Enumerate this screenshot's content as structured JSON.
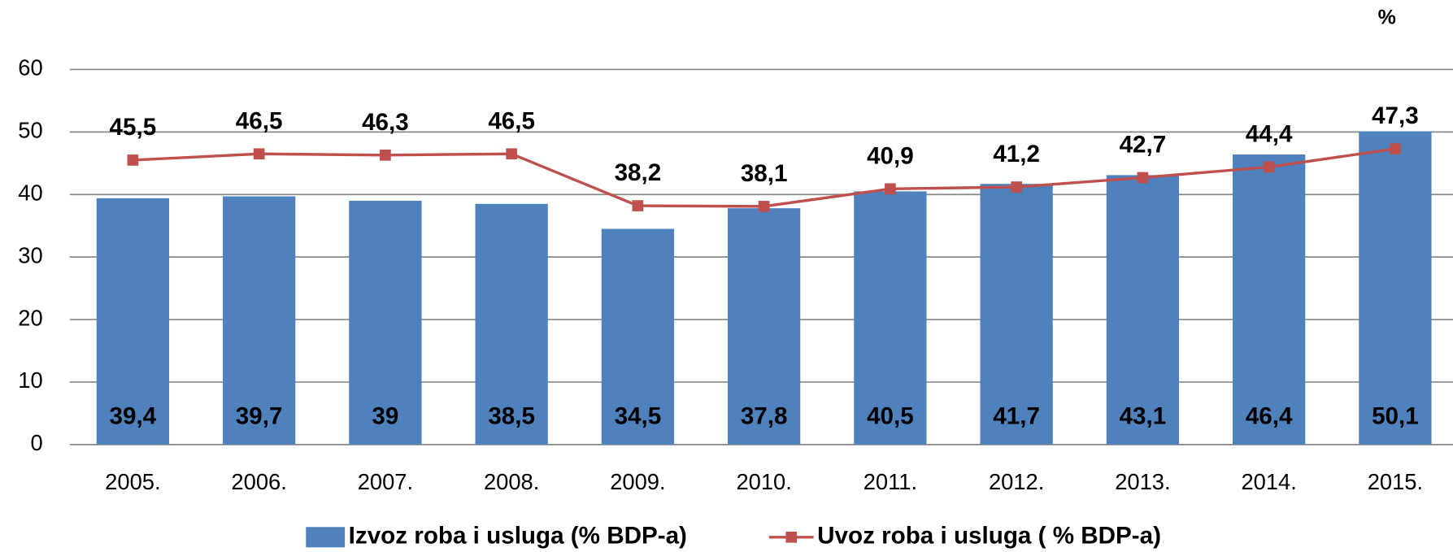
{
  "chart_data": {
    "type": "combo",
    "unit": "%",
    "categories": [
      "2005.",
      "2006.",
      "2007.",
      "2008.",
      "2009.",
      "2010.",
      "2011.",
      "2012.",
      "2013.",
      "2014.",
      "2015."
    ],
    "series": [
      {
        "name": "Izvoz roba i usluga (% BDP-a)",
        "type": "bar",
        "color": "#4f81bd",
        "values": [
          39.4,
          39.7,
          39,
          38.5,
          34.5,
          37.8,
          40.5,
          41.7,
          43.1,
          46.4,
          50.1
        ],
        "value_labels": [
          "39,4",
          "39,7",
          "39",
          "38,5",
          "34,5",
          "37,8",
          "40,5",
          "41,7",
          "43,1",
          "46,4",
          "50,1"
        ]
      },
      {
        "name": "Uvoz roba i usluga ( % BDP-a)",
        "type": "line",
        "color": "#c0504d",
        "values": [
          45.5,
          46.5,
          46.3,
          46.5,
          38.2,
          38.1,
          40.9,
          41.2,
          42.7,
          44.4,
          47.3
        ],
        "value_labels": [
          "45,5",
          "46,5",
          "46,3",
          "46,5",
          "38,2",
          "38,1",
          "40,9",
          "41,2",
          "42,7",
          "44,4",
          "47,3"
        ]
      }
    ],
    "ylim": [
      0,
      60
    ],
    "yticks": [
      0,
      10,
      20,
      30,
      40,
      50,
      60
    ],
    "grid": true,
    "legend": "bottom"
  }
}
